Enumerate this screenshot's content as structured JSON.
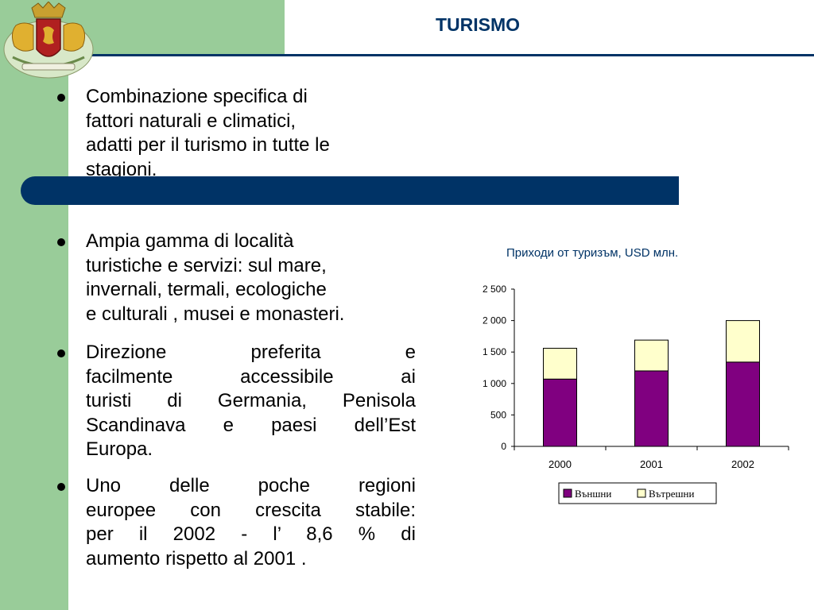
{
  "header": {
    "title": "TURISMO"
  },
  "bullets": [
    {
      "lines": [
        "Combinazione specifica di",
        "fattori naturali e climatici,",
        "adatti per il turismo in tutte le",
        "stagioni."
      ]
    },
    {
      "lines": [
        "Ampia gamma di località",
        "turistiche e servizi: sul mare,",
        "invernali, termali, ecologiche",
        "e culturali , musei e monasteri."
      ]
    },
    {
      "lines": [
        "Direzione preferita e",
        "facilmente accessibile ai",
        "turisti di Germania, Penisola",
        "Scandinava e paesi dell’Est",
        "Europa."
      ]
    },
    {
      "lines": [
        "Uno delle poche regioni",
        "europee con crescita stabile:",
        "per il 2002  - l’ 8,6 % di",
        "aumento rispetto  al  2001 ."
      ]
    }
  ],
  "chart_data": {
    "type": "bar",
    "stacked": true,
    "title": "Приходи от туризъм, USD млн.",
    "categories": [
      "2000",
      "2001",
      "2002"
    ],
    "series": [
      {
        "name": "Външни",
        "color": "#800080",
        "values": [
          1070,
          1200,
          1340
        ]
      },
      {
        "name": "Вътрешни",
        "color": "#ffffcc",
        "values": [
          490,
          490,
          660
        ]
      }
    ],
    "yticks": [
      "0",
      "500",
      "1 000",
      "1 500",
      "2 000",
      "2 500"
    ],
    "ylim": [
      0,
      2500
    ],
    "legend": "bottom",
    "grid": false
  }
}
